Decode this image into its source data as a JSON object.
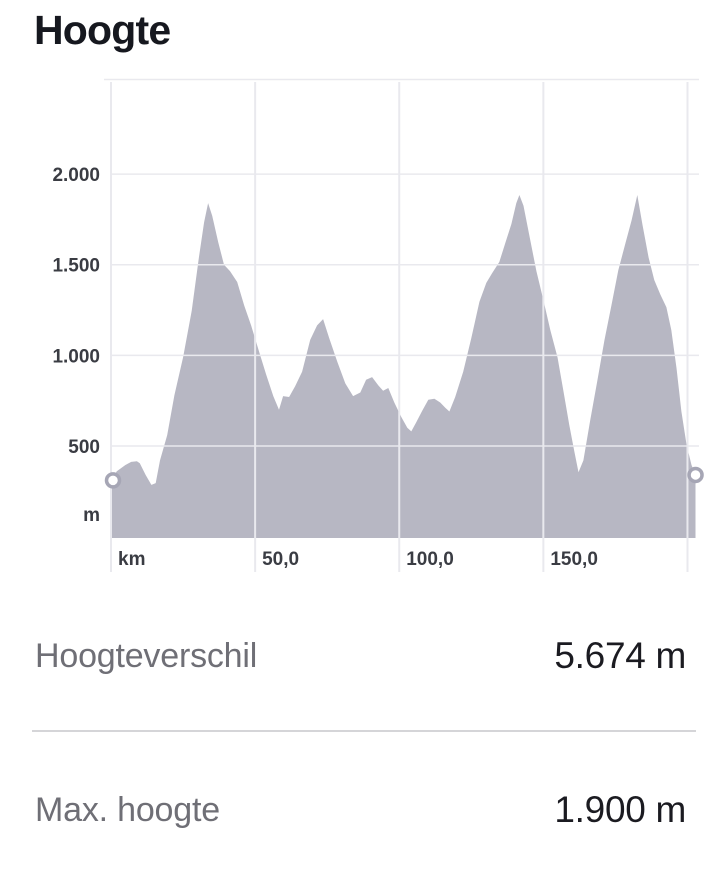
{
  "title": "Hoogte",
  "stats": [
    {
      "label": "Hoogteverschil",
      "value": "5.674 m"
    },
    {
      "label": "Max. hoogte",
      "value": "1.900 m"
    }
  ],
  "chart_data": {
    "type": "area",
    "title": "Hoogte",
    "xlabel": "km",
    "ylabel": "m",
    "y_unit_label": "m",
    "grid": true,
    "legend": "none",
    "xlim": [
      0,
      204
    ],
    "ylim": [
      -8,
      2525
    ],
    "x_ticks": [
      {
        "km": 0,
        "label": "km"
      },
      {
        "km": 50,
        "label": "50,0"
      },
      {
        "km": 100,
        "label": "100,0"
      },
      {
        "km": 150,
        "label": "150,0"
      },
      {
        "km": 200,
        "label": ""
      }
    ],
    "y_ticks": [
      {
        "m": 500,
        "label": "500"
      },
      {
        "m": 1000,
        "label": "1.000"
      },
      {
        "m": 1500,
        "label": "1.500"
      },
      {
        "m": 2000,
        "label": "2.000"
      }
    ],
    "colors": {
      "area": "#b7b7c3",
      "grid": "#e9e9ee",
      "tick_text": "#3a3c43",
      "marker_ring": "#a6a6b5",
      "marker_fill": "#ffffff"
    },
    "markers": {
      "start_km": 0,
      "end_km": 202.8
    },
    "profile_km_m": [
      [
        0,
        310
      ],
      [
        2,
        360
      ],
      [
        5,
        395
      ],
      [
        7,
        412
      ],
      [
        9,
        415
      ],
      [
        10,
        405
      ],
      [
        12,
        340
      ],
      [
        14,
        285
      ],
      [
        15.5,
        295
      ],
      [
        17,
        420
      ],
      [
        19.5,
        560
      ],
      [
        22,
        780
      ],
      [
        25,
        990
      ],
      [
        28,
        1245
      ],
      [
        30.5,
        1540
      ],
      [
        32.3,
        1735
      ],
      [
        33.7,
        1840
      ],
      [
        35.1,
        1770
      ],
      [
        37.2,
        1625
      ],
      [
        39.2,
        1500
      ],
      [
        41.3,
        1465
      ],
      [
        43.8,
        1405
      ],
      [
        46.2,
        1275
      ],
      [
        48.6,
        1165
      ],
      [
        51,
        1040
      ],
      [
        53.8,
        895
      ],
      [
        56.3,
        775
      ],
      [
        58.3,
        700
      ],
      [
        59.7,
        775
      ],
      [
        61.8,
        770
      ],
      [
        63.9,
        830
      ],
      [
        66.3,
        910
      ],
      [
        69.1,
        1085
      ],
      [
        71.5,
        1165
      ],
      [
        73.6,
        1200
      ],
      [
        75.7,
        1095
      ],
      [
        78.5,
        965
      ],
      [
        81.3,
        845
      ],
      [
        84,
        775
      ],
      [
        86.5,
        795
      ],
      [
        88.5,
        865
      ],
      [
        90.6,
        880
      ],
      [
        92.7,
        835
      ],
      [
        94.4,
        805
      ],
      [
        96.2,
        820
      ],
      [
        98.3,
        740
      ],
      [
        100.7,
        660
      ],
      [
        102.8,
        600
      ],
      [
        104.2,
        580
      ],
      [
        105.9,
        630
      ],
      [
        108,
        695
      ],
      [
        110.1,
        755
      ],
      [
        112.2,
        760
      ],
      [
        114.2,
        740
      ],
      [
        116,
        710
      ],
      [
        117.4,
        690
      ],
      [
        119.4,
        770
      ],
      [
        122.2,
        910
      ],
      [
        125,
        1095
      ],
      [
        127.8,
        1295
      ],
      [
        130.2,
        1400
      ],
      [
        132.3,
        1455
      ],
      [
        134.7,
        1515
      ],
      [
        136.8,
        1620
      ],
      [
        138.9,
        1725
      ],
      [
        140.6,
        1840
      ],
      [
        141.7,
        1885
      ],
      [
        143.1,
        1825
      ],
      [
        145.1,
        1665
      ],
      [
        147.6,
        1465
      ],
      [
        150,
        1305
      ],
      [
        152.4,
        1140
      ],
      [
        154.9,
        990
      ],
      [
        156.9,
        810
      ],
      [
        159,
        615
      ],
      [
        160.8,
        465
      ],
      [
        162.2,
        355
      ],
      [
        163.9,
        420
      ],
      [
        166.3,
        645
      ],
      [
        168.8,
        865
      ],
      [
        171.2,
        1085
      ],
      [
        173.6,
        1275
      ],
      [
        176,
        1470
      ],
      [
        178.5,
        1620
      ],
      [
        180.6,
        1745
      ],
      [
        182.6,
        1885
      ],
      [
        184.4,
        1720
      ],
      [
        186.5,
        1540
      ],
      [
        188.5,
        1415
      ],
      [
        190.6,
        1335
      ],
      [
        192.7,
        1265
      ],
      [
        194.4,
        1140
      ],
      [
        196.2,
        930
      ],
      [
        197.9,
        690
      ],
      [
        199.7,
        505
      ],
      [
        201.4,
        395
      ],
      [
        202.8,
        340
      ]
    ]
  }
}
